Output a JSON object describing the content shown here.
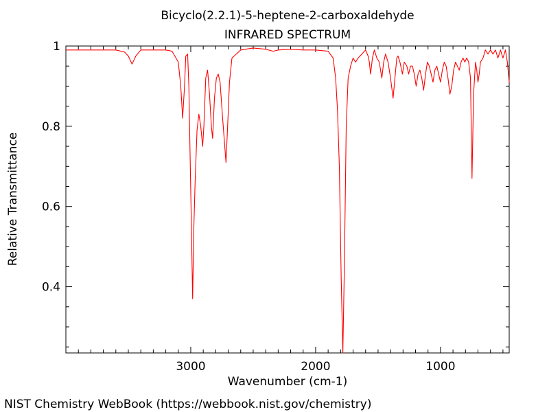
{
  "chart_data": {
    "type": "line",
    "title": "Bicyclo(2.2.1)-5-heptene-2-carboxaldehyde",
    "subtitle": "INFRARED SPECTRUM",
    "xlabel": "Wavenumber (cm-1)",
    "ylabel": "Relative Transmittance",
    "xlim": [
      4000,
      450
    ],
    "ylim": [
      0.235,
      1.0
    ],
    "x_reversed": true,
    "xticks": [
      3000,
      2000,
      1000
    ],
    "xtick_labels": [
      "3000",
      "2000",
      "1000"
    ],
    "yticks": [
      0.4,
      0.6,
      0.8,
      1.0
    ],
    "ytick_labels": [
      "0.4",
      "0.6",
      "0.8",
      "1"
    ],
    "grid": false,
    "legend": "none",
    "series": [
      {
        "color": "#ff0000",
        "points": [
          [
            4000,
            0.99
          ],
          [
            3900,
            0.99
          ],
          [
            3800,
            0.99
          ],
          [
            3700,
            0.99
          ],
          [
            3600,
            0.99
          ],
          [
            3530,
            0.985
          ],
          [
            3500,
            0.975
          ],
          [
            3470,
            0.955
          ],
          [
            3440,
            0.975
          ],
          [
            3400,
            0.99
          ],
          [
            3300,
            0.99
          ],
          [
            3200,
            0.99
          ],
          [
            3150,
            0.987
          ],
          [
            3100,
            0.96
          ],
          [
            3080,
            0.9
          ],
          [
            3065,
            0.82
          ],
          [
            3050,
            0.9
          ],
          [
            3040,
            0.975
          ],
          [
            3025,
            0.98
          ],
          [
            3015,
            0.9
          ],
          [
            3005,
            0.72
          ],
          [
            2995,
            0.55
          ],
          [
            2985,
            0.37
          ],
          [
            2975,
            0.55
          ],
          [
            2965,
            0.66
          ],
          [
            2950,
            0.79
          ],
          [
            2935,
            0.83
          ],
          [
            2920,
            0.8
          ],
          [
            2905,
            0.75
          ],
          [
            2895,
            0.8
          ],
          [
            2880,
            0.92
          ],
          [
            2865,
            0.94
          ],
          [
            2850,
            0.88
          ],
          [
            2835,
            0.8
          ],
          [
            2825,
            0.77
          ],
          [
            2810,
            0.87
          ],
          [
            2795,
            0.92
          ],
          [
            2780,
            0.93
          ],
          [
            2765,
            0.91
          ],
          [
            2745,
            0.82
          ],
          [
            2730,
            0.76
          ],
          [
            2718,
            0.71
          ],
          [
            2705,
            0.8
          ],
          [
            2690,
            0.91
          ],
          [
            2670,
            0.97
          ],
          [
            2600,
            0.99
          ],
          [
            2500,
            0.995
          ],
          [
            2400,
            0.992
          ],
          [
            2340,
            0.987
          ],
          [
            2300,
            0.99
          ],
          [
            2200,
            0.992
          ],
          [
            2100,
            0.99
          ],
          [
            2000,
            0.99
          ],
          [
            1900,
            0.987
          ],
          [
            1860,
            0.97
          ],
          [
            1840,
            0.92
          ],
          [
            1825,
            0.84
          ],
          [
            1810,
            0.7
          ],
          [
            1795,
            0.42
          ],
          [
            1782,
            0.235
          ],
          [
            1770,
            0.45
          ],
          [
            1755,
            0.8
          ],
          [
            1740,
            0.92
          ],
          [
            1720,
            0.95
          ],
          [
            1700,
            0.97
          ],
          [
            1680,
            0.96
          ],
          [
            1660,
            0.97
          ],
          [
            1630,
            0.98
          ],
          [
            1600,
            0.99
          ],
          [
            1580,
            0.975
          ],
          [
            1570,
            0.96
          ],
          [
            1560,
            0.93
          ],
          [
            1545,
            0.97
          ],
          [
            1530,
            0.99
          ],
          [
            1510,
            0.97
          ],
          [
            1490,
            0.96
          ],
          [
            1470,
            0.92
          ],
          [
            1455,
            0.96
          ],
          [
            1440,
            0.98
          ],
          [
            1420,
            0.96
          ],
          [
            1400,
            0.92
          ],
          [
            1380,
            0.87
          ],
          [
            1365,
            0.92
          ],
          [
            1350,
            0.97
          ],
          [
            1340,
            0.975
          ],
          [
            1325,
            0.96
          ],
          [
            1305,
            0.93
          ],
          [
            1290,
            0.96
          ],
          [
            1270,
            0.95
          ],
          [
            1255,
            0.93
          ],
          [
            1240,
            0.95
          ],
          [
            1225,
            0.95
          ],
          [
            1210,
            0.93
          ],
          [
            1195,
            0.9
          ],
          [
            1180,
            0.93
          ],
          [
            1165,
            0.94
          ],
          [
            1150,
            0.92
          ],
          [
            1135,
            0.89
          ],
          [
            1120,
            0.93
          ],
          [
            1105,
            0.96
          ],
          [
            1090,
            0.95
          ],
          [
            1075,
            0.93
          ],
          [
            1060,
            0.91
          ],
          [
            1045,
            0.94
          ],
          [
            1030,
            0.95
          ],
          [
            1015,
            0.93
          ],
          [
            1000,
            0.91
          ],
          [
            985,
            0.94
          ],
          [
            970,
            0.96
          ],
          [
            955,
            0.95
          ],
          [
            940,
            0.92
          ],
          [
            925,
            0.88
          ],
          [
            910,
            0.9
          ],
          [
            895,
            0.94
          ],
          [
            880,
            0.96
          ],
          [
            865,
            0.95
          ],
          [
            850,
            0.94
          ],
          [
            835,
            0.96
          ],
          [
            820,
            0.97
          ],
          [
            805,
            0.96
          ],
          [
            790,
            0.97
          ],
          [
            775,
            0.96
          ],
          [
            760,
            0.92
          ],
          [
            748,
            0.67
          ],
          [
            735,
            0.88
          ],
          [
            720,
            0.96
          ],
          [
            710,
            0.94
          ],
          [
            700,
            0.91
          ],
          [
            690,
            0.93
          ],
          [
            680,
            0.96
          ],
          [
            660,
            0.97
          ],
          [
            640,
            0.99
          ],
          [
            620,
            0.98
          ],
          [
            600,
            0.99
          ],
          [
            580,
            0.98
          ],
          [
            560,
            0.99
          ],
          [
            540,
            0.97
          ],
          [
            520,
            0.99
          ],
          [
            500,
            0.97
          ],
          [
            480,
            0.99
          ],
          [
            465,
            0.96
          ],
          [
            450,
            0.91
          ]
        ]
      }
    ]
  },
  "footer": {
    "credit": "NIST Chemistry WebBook (https://webbook.nist.gov/chemistry)"
  }
}
